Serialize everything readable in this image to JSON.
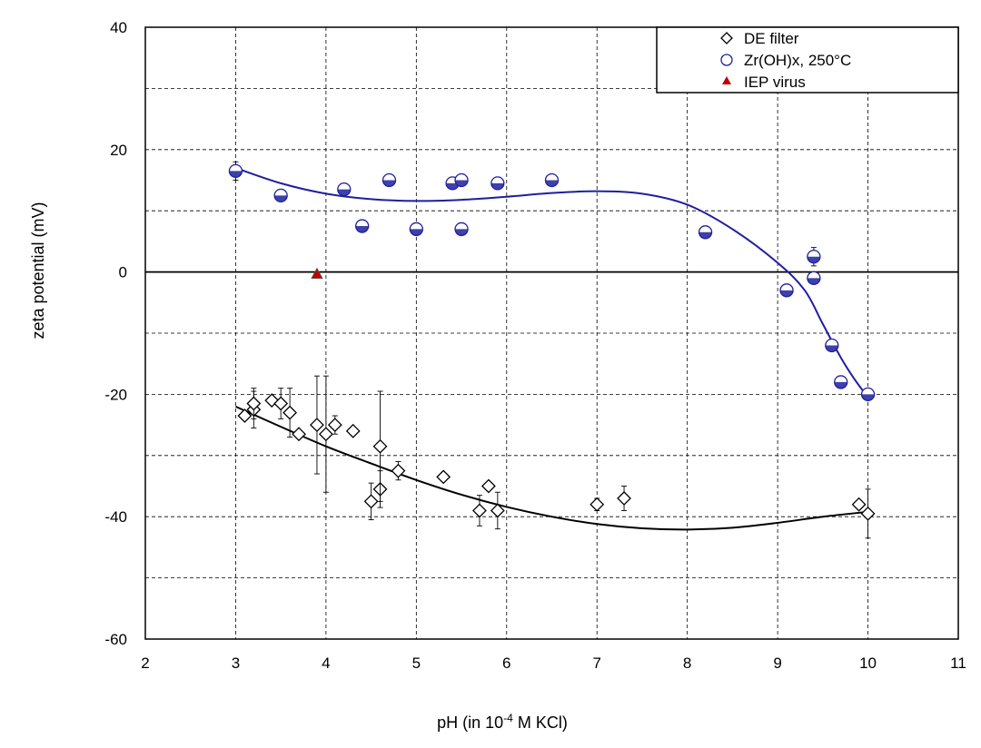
{
  "chart_data": {
    "type": "scatter",
    "title": "",
    "xlabel_main": "pH (in 10",
    "xlabel_sup": "-4",
    "xlabel_rest": " M KCl)",
    "ylabel": "zeta potential (mV)",
    "xlim": [
      2,
      11
    ],
    "ylim": [
      -60,
      40
    ],
    "x_ticks": [
      "2",
      "3",
      "4",
      "5",
      "6",
      "7",
      "8",
      "9",
      "10",
      "11"
    ],
    "y_ticks": [
      "-60",
      "-40",
      "-20",
      "0",
      "20",
      "40"
    ],
    "grid": true,
    "legend_position": "top-right",
    "series": [
      {
        "name": "DE filter",
        "marker": "diamond",
        "color": "#000000",
        "points": [
          {
            "x": 3.1,
            "y": -23.5,
            "err": 0
          },
          {
            "x": 3.2,
            "y": -22.5,
            "err": 3
          },
          {
            "x": 3.2,
            "y": -21.5,
            "err": 2.5
          },
          {
            "x": 3.4,
            "y": -21.0,
            "err": 0
          },
          {
            "x": 3.5,
            "y": -21.5,
            "err": 2.5
          },
          {
            "x": 3.6,
            "y": -23.0,
            "err": 4
          },
          {
            "x": 3.7,
            "y": -26.5,
            "err": 0
          },
          {
            "x": 3.9,
            "y": -25.0,
            "err": 8
          },
          {
            "x": 4.0,
            "y": -26.5,
            "err": 9.5
          },
          {
            "x": 4.1,
            "y": -25.0,
            "err": 1.5
          },
          {
            "x": 4.3,
            "y": -26.0,
            "err": 0
          },
          {
            "x": 4.5,
            "y": -37.5,
            "err": 3
          },
          {
            "x": 4.6,
            "y": -35.5,
            "err": 3
          },
          {
            "x": 4.6,
            "y": -28.5,
            "err": 9
          },
          {
            "x": 4.8,
            "y": -32.5,
            "err": 1.5
          },
          {
            "x": 5.3,
            "y": -33.5,
            "err": 0
          },
          {
            "x": 5.7,
            "y": -39.0,
            "err": 2.5
          },
          {
            "x": 5.8,
            "y": -35.0,
            "err": 0
          },
          {
            "x": 5.9,
            "y": -39.0,
            "err": 3
          },
          {
            "x": 7.0,
            "y": -38.0,
            "err": 1
          },
          {
            "x": 7.3,
            "y": -37.0,
            "err": 2
          },
          {
            "x": 9.9,
            "y": -38.0,
            "err": 0
          },
          {
            "x": 10.0,
            "y": -39.5,
            "err": 4
          }
        ],
        "trendline": [
          [
            3.0,
            -22
          ],
          [
            3.5,
            -25.3
          ],
          [
            4.0,
            -28.5
          ],
          [
            4.5,
            -31.3
          ],
          [
            5.0,
            -34
          ],
          [
            5.5,
            -36.4
          ],
          [
            6.0,
            -38.4
          ],
          [
            6.5,
            -40
          ],
          [
            7.0,
            -41.2
          ],
          [
            7.5,
            -41.9
          ],
          [
            8.0,
            -42.1
          ],
          [
            8.5,
            -41.8
          ],
          [
            9.0,
            -41
          ],
          [
            9.5,
            -40
          ],
          [
            10.0,
            -39.2
          ]
        ]
      },
      {
        "name": "Zr(OH)x, 250°C",
        "marker": "circle",
        "color": "#1f1f9e",
        "points": [
          {
            "x": 3.0,
            "y": 16.5,
            "err": 1.5
          },
          {
            "x": 3.5,
            "y": 12.5,
            "err": 0
          },
          {
            "x": 4.2,
            "y": 13.5,
            "err": 0
          },
          {
            "x": 4.4,
            "y": 7.5,
            "err": 0
          },
          {
            "x": 4.7,
            "y": 15.0,
            "err": 0
          },
          {
            "x": 5.0,
            "y": 7.0,
            "err": 0
          },
          {
            "x": 5.4,
            "y": 14.5,
            "err": 0
          },
          {
            "x": 5.5,
            "y": 15.0,
            "err": 0
          },
          {
            "x": 5.5,
            "y": 7.0,
            "err": 0
          },
          {
            "x": 5.9,
            "y": 14.5,
            "err": 0
          },
          {
            "x": 6.5,
            "y": 15.0,
            "err": 0
          },
          {
            "x": 8.2,
            "y": 6.5,
            "err": 0
          },
          {
            "x": 9.1,
            "y": -3.0,
            "err": 0
          },
          {
            "x": 9.4,
            "y": 2.5,
            "err": 1.5
          },
          {
            "x": 9.4,
            "y": -1.0,
            "err": 0
          },
          {
            "x": 9.6,
            "y": -12.0,
            "err": 0
          },
          {
            "x": 9.7,
            "y": -18.0,
            "err": 0
          },
          {
            "x": 10.0,
            "y": -20.0,
            "err": 0
          }
        ],
        "trendline": [
          [
            3.0,
            17
          ],
          [
            3.5,
            14.5
          ],
          [
            4.0,
            12.8
          ],
          [
            4.5,
            11.9
          ],
          [
            5.0,
            11.6
          ],
          [
            5.5,
            11.8
          ],
          [
            6.0,
            12.3
          ],
          [
            6.5,
            12.9
          ],
          [
            7.0,
            13.2
          ],
          [
            7.5,
            12.8
          ],
          [
            8.0,
            11
          ],
          [
            8.5,
            7
          ],
          [
            9.0,
            1.5
          ],
          [
            9.3,
            -3
          ],
          [
            9.5,
            -8.5
          ],
          [
            9.7,
            -14
          ],
          [
            9.85,
            -17.5
          ],
          [
            10.0,
            -20.5
          ]
        ]
      },
      {
        "name": "IEP virus",
        "marker": "triangle",
        "color": "#c00000",
        "points": [
          {
            "x": 3.9,
            "y": -0.3,
            "err": 0
          }
        ]
      }
    ]
  }
}
